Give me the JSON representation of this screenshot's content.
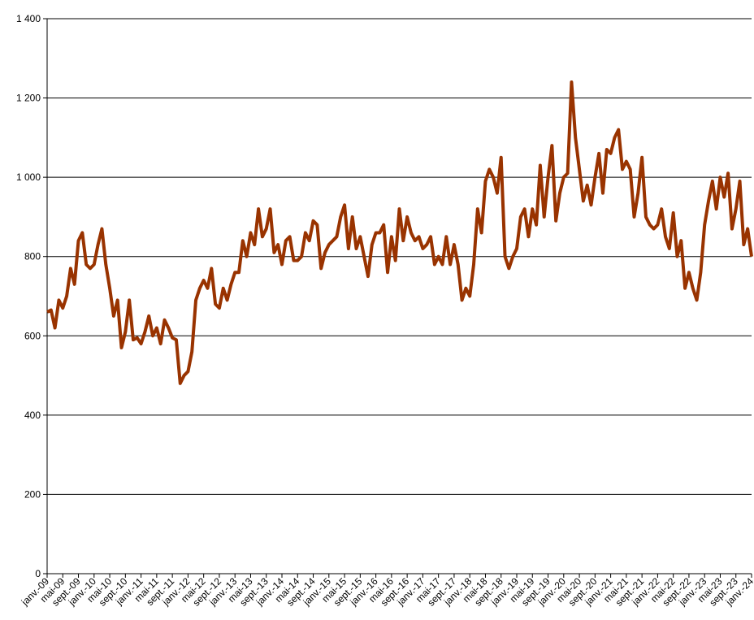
{
  "chart_data": {
    "type": "line",
    "categories": [
      "janv.-09",
      null,
      null,
      null,
      "mai-09",
      null,
      null,
      null,
      "sept.-09",
      null,
      null,
      null,
      "janv.-10",
      null,
      null,
      null,
      "mai-10",
      null,
      null,
      null,
      "sept.-10",
      null,
      null,
      null,
      "janv.-11",
      null,
      null,
      null,
      "mai-11",
      null,
      null,
      null,
      "sept.-11",
      null,
      null,
      null,
      "janv.-12",
      null,
      null,
      null,
      "mai-12",
      null,
      null,
      null,
      "sept.-12",
      null,
      null,
      null,
      "janv.-13",
      null,
      null,
      null,
      "mai-13",
      null,
      null,
      null,
      "sept.-13",
      null,
      null,
      null,
      "janv.-14",
      null,
      null,
      null,
      "mai-14",
      null,
      null,
      null,
      "sept.-14",
      null,
      null,
      null,
      "janv.-15",
      null,
      null,
      null,
      "mai-15",
      null,
      null,
      null,
      "sept.-15",
      null,
      null,
      null,
      "janv.-16",
      null,
      null,
      null,
      "mai-16",
      null,
      null,
      null,
      "sept.-16",
      null,
      null,
      null,
      "janv.-17",
      null,
      null,
      null,
      "mai-17",
      null,
      null,
      null,
      "sept.-17",
      null,
      null,
      null,
      "janv.-18",
      null,
      null,
      null,
      "mai-18",
      null,
      null,
      null,
      "sept.-18",
      null,
      null,
      null,
      "janv.-19",
      null,
      null,
      null,
      "mai-19",
      null,
      null,
      null,
      "sept.-19",
      null,
      null,
      null,
      "janv.-20",
      null,
      null,
      null,
      "mai-20",
      null,
      null,
      null,
      "sept.-20",
      null,
      null,
      null,
      "janv.-21",
      null,
      null,
      null,
      "mai-21",
      null,
      null,
      null,
      "sept.-21",
      null,
      null,
      null,
      "janv.-22",
      null,
      null,
      null,
      "mai-22",
      null,
      null,
      null,
      "sept.-22",
      null,
      null,
      null,
      "janv.-23",
      null,
      null,
      null,
      "mai-23",
      null,
      null,
      null,
      "sept.-23",
      null,
      null,
      null,
      "janv.-24"
    ],
    "series": [
      {
        "color": "#993300",
        "values": [
          660,
          665,
          620,
          690,
          670,
          700,
          770,
          730,
          840,
          860,
          780,
          770,
          780,
          830,
          870,
          780,
          720,
          650,
          690,
          570,
          610,
          690,
          590,
          595,
          580,
          610,
          650,
          600,
          620,
          580,
          640,
          620,
          595,
          590,
          480,
          500,
          510,
          560,
          690,
          720,
          740,
          720,
          770,
          680,
          670,
          720,
          690,
          730,
          760,
          760,
          840,
          800,
          860,
          830,
          920,
          850,
          870,
          920,
          810,
          830,
          780,
          840,
          850,
          790,
          790,
          800,
          860,
          840,
          890,
          880,
          770,
          810,
          830,
          840,
          850,
          900,
          930,
          820,
          900,
          820,
          850,
          800,
          750,
          830,
          860,
          860,
          880,
          760,
          850,
          790,
          920,
          840,
          900,
          860,
          840,
          850,
          820,
          830,
          850,
          780,
          800,
          780,
          850,
          780,
          830,
          780,
          690,
          720,
          700,
          780,
          920,
          860,
          990,
          1020,
          1000,
          960,
          1050,
          800,
          770,
          800,
          820,
          900,
          920,
          850,
          920,
          880,
          1030,
          900,
          1000,
          1080,
          890,
          960,
          1000,
          1010,
          1240,
          1100,
          1020,
          940,
          980,
          930,
          1000,
          1060,
          960,
          1070,
          1060,
          1100,
          1120,
          1020,
          1040,
          1020,
          900,
          960,
          1050,
          900,
          880,
          870,
          880,
          920,
          850,
          820,
          910,
          800,
          840,
          720,
          760,
          720,
          690,
          760,
          880,
          940,
          990,
          920,
          1000,
          950,
          1010,
          870,
          920,
          990,
          830,
          870,
          800
        ]
      }
    ],
    "ylim": [
      0,
      1400
    ],
    "yticks": [
      0,
      200,
      400,
      600,
      800,
      {
        "value": 1000,
        "label": "1 000"
      },
      {
        "value": 1200,
        "label": "1 200"
      },
      {
        "value": 1400,
        "label": "1 400"
      }
    ],
    "grid": true
  }
}
